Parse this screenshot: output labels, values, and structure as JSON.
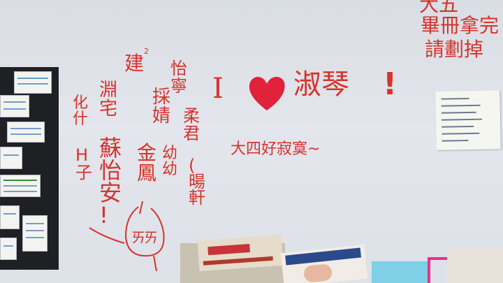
{
  "whiteboard": {
    "top_right_lines": [
      "大五",
      "畢冊拿完",
      "請劃掉"
    ],
    "left_words": {
      "jian": "建",
      "sup2": "2",
      "hua_shi": "化\n什",
      "h_zi": "H\n子",
      "yuan_zhai": "淵\n宅",
      "su_yi_an": "蘇\n怡\n安\n!",
      "yi_ning": "怡\n寧",
      "cai_jing": "採\n婧",
      "rou_jun": "柔\n君",
      "jin_feng": "金\n鳳",
      "you_you": "幼\n幼",
      "yang_xuan": "(\n暘\n軒",
      "face": "ㄞ"
    },
    "love_left": "I",
    "love_right": "淑琴",
    "love_punct": "!",
    "lonely": "大四好寂寞~"
  },
  "colors": {
    "marker_red": "#d8322c",
    "heart_red": "#e0223a",
    "board": "#e1e4ea"
  }
}
